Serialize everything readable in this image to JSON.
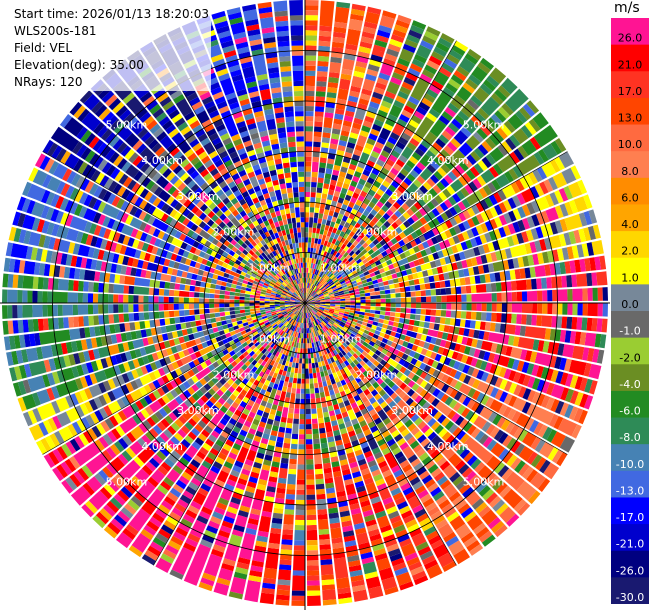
{
  "header": {
    "start_time": "Start time: 2026/01/13 18:20:03",
    "instrument": "WLS200s-181",
    "field": "Field: VEL",
    "elevation": "Elevation(deg): 35.00",
    "nrays": "NRays: 120"
  },
  "colorbar": {
    "unit": "m/s",
    "levels": [
      {
        "label": "26.0",
        "color": "#ff1493"
      },
      {
        "label": "21.0",
        "color": "#ff0000"
      },
      {
        "label": "17.0",
        "color": "#ff3322"
      },
      {
        "label": "13.0",
        "color": "#ff4500"
      },
      {
        "label": "10.0",
        "color": "#ff6a40"
      },
      {
        "label": "8.0",
        "color": "#ff7f50"
      },
      {
        "label": "6.0",
        "color": "#ff8c00"
      },
      {
        "label": "4.0",
        "color": "#ffa500"
      },
      {
        "label": "2.0",
        "color": "#ffd700"
      },
      {
        "label": "1.0",
        "color": "#ffff00"
      },
      {
        "label": "0.0",
        "color": "#778899"
      },
      {
        "label": "-1.0",
        "color": "#696969"
      },
      {
        "label": "-2.0",
        "color": "#9acd32"
      },
      {
        "label": "-4.0",
        "color": "#6b8e23"
      },
      {
        "label": "-6.0",
        "color": "#228b22"
      },
      {
        "label": "-8.0",
        "color": "#2e8b57"
      },
      {
        "label": "-10.0",
        "color": "#4682b4"
      },
      {
        "label": "-13.0",
        "color": "#4169e1"
      },
      {
        "label": "-17.0",
        "color": "#0000ff"
      },
      {
        "label": "-21.0",
        "color": "#0000cd"
      },
      {
        "label": "-26.0",
        "color": "#000080"
      },
      {
        "label": "-30.0",
        "color": "#191970"
      }
    ]
  },
  "chart_data": {
    "type": "heatmap",
    "projection": "polar",
    "field": "VEL",
    "units": "m/s",
    "nrays": 120,
    "range_ring_labels": [
      "1.00km",
      "2.00km",
      "3.00km",
      "4.00km",
      "5.00km"
    ],
    "range_rings_km": [
      1,
      2,
      3,
      4,
      5
    ],
    "azimuth_lines": 12
  }
}
